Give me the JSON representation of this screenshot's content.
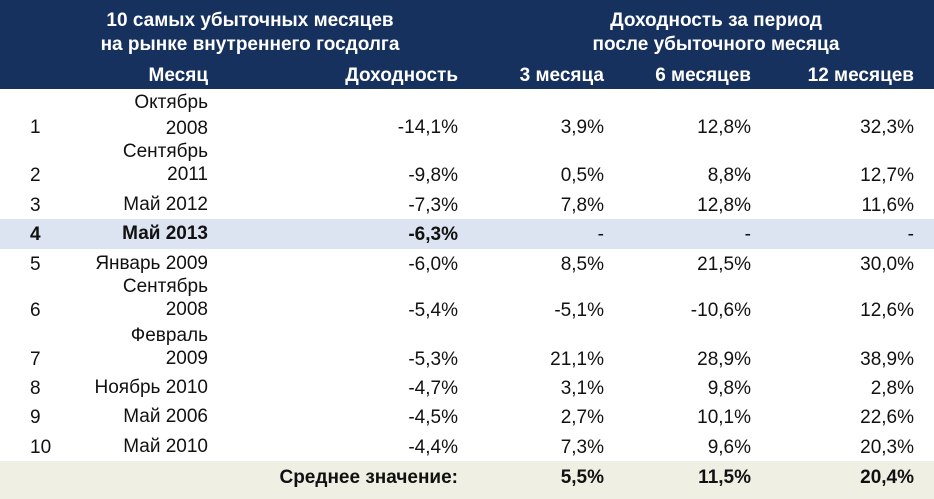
{
  "header": {
    "left_title_line1": "10 самых убыточных месяцев",
    "left_title_line2": "на рынке внутреннего госдолга",
    "right_title_line1": "Доходность за период",
    "right_title_line2": "после убыточного месяца",
    "col_month": "Месяц",
    "col_yield": "Доходность",
    "col_3m": "3 месяца",
    "col_6m": "6 месяцев",
    "col_12m": "12 месяцев"
  },
  "rows": [
    {
      "n": "1",
      "month1": "Октябрь",
      "month2": "2008",
      "yield": "-14,1%",
      "m3": "3,9%",
      "m6": "12,8%",
      "m12": "32,3%"
    },
    {
      "n": "2",
      "month1": "Сентябрь",
      "month2": "2011",
      "yield": "-9,8%",
      "m3": "0,5%",
      "m6": "8,8%",
      "m12": "12,7%"
    },
    {
      "n": "3",
      "month1": "",
      "month2": "Май 2012",
      "yield": "-7,3%",
      "m3": "7,8%",
      "m6": "12,8%",
      "m12": "11,6%"
    },
    {
      "n": "4",
      "month1": "",
      "month2": "Май 2013",
      "yield": "-6,3%",
      "m3": "-",
      "m6": "-",
      "m12": "-"
    },
    {
      "n": "5",
      "month1": "",
      "month2": "Январь 2009",
      "yield": "-6,0%",
      "m3": "8,5%",
      "m6": "21,5%",
      "m12": "30,0%"
    },
    {
      "n": "6",
      "month1": "Сентябрь",
      "month2": "2008",
      "yield": "-5,4%",
      "m3": "-5,1%",
      "m6": "-10,6%",
      "m12": "12,6%"
    },
    {
      "n": "7",
      "month1": "Февраль",
      "month2": "2009",
      "yield": "-5,3%",
      "m3": "21,1%",
      "m6": "28,9%",
      "m12": "38,9%"
    },
    {
      "n": "8",
      "month1": "",
      "month2": "Ноябрь 2010",
      "yield": "-4,7%",
      "m3": "3,1%",
      "m6": "9,8%",
      "m12": "2,8%"
    },
    {
      "n": "9",
      "month1": "",
      "month2": "Май 2006",
      "yield": "-4,5%",
      "m3": "2,7%",
      "m6": "10,1%",
      "m12": "22,6%"
    },
    {
      "n": "10",
      "month1": "",
      "month2": "Май 2010",
      "yield": "-4,4%",
      "m3": "7,3%",
      "m6": "9,6%",
      "m12": "20,3%"
    }
  ],
  "average": {
    "label": "Среднее значение:",
    "m3": "5,5%",
    "m6": "11,5%",
    "m12": "20,4%"
  },
  "colors": {
    "header_bg": "#17315f",
    "highlight_row_bg": "#dbe4f0",
    "average_row_bg": "#efefe4"
  }
}
